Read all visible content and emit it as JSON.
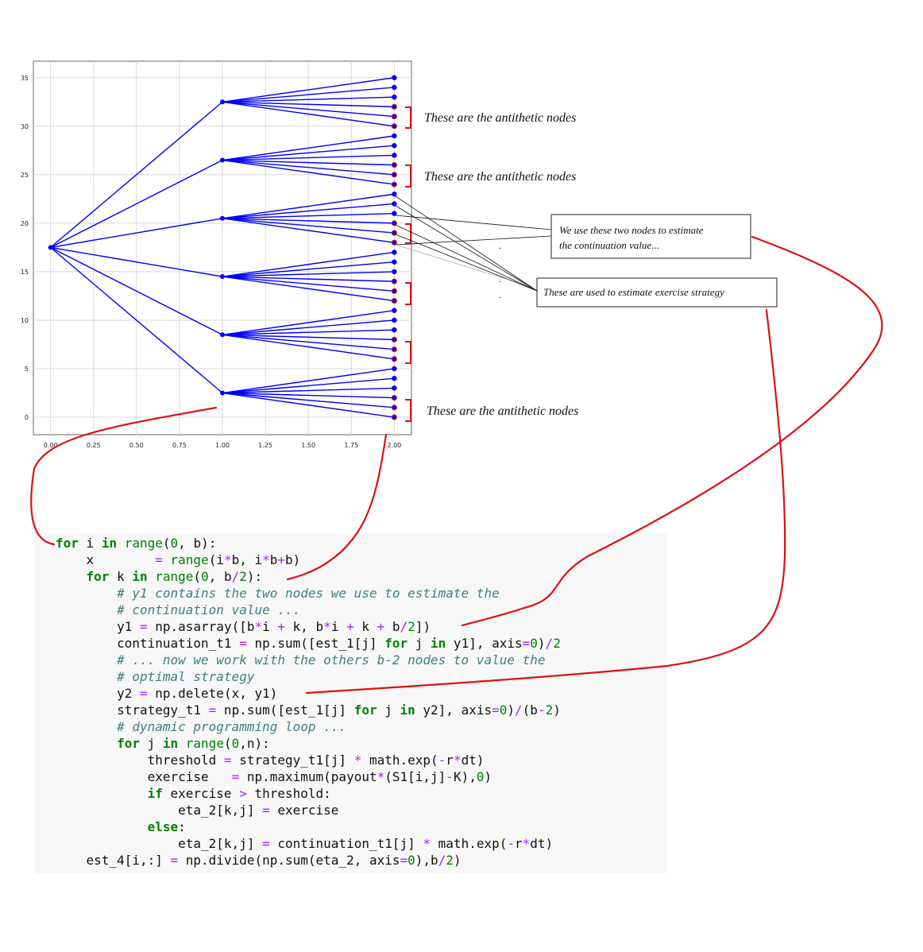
{
  "chart_data": {
    "type": "tree",
    "x_ticks": [
      "0.00",
      "0.25",
      "0.50",
      "0.75",
      "1.00",
      "1.25",
      "1.50",
      "1.75",
      "2.00"
    ],
    "y_ticks": [
      "0",
      "5",
      "10",
      "15",
      "20",
      "25",
      "30",
      "35"
    ],
    "xlim": [
      -0.1,
      2.1
    ],
    "ylim": [
      -1.8,
      36.7
    ],
    "grid": true,
    "color": "#0000ff",
    "antithetic_color": "#cc2222",
    "root": {
      "x": 0.0,
      "y": 17.5
    },
    "level1": [
      32.5,
      26.5,
      20.5,
      14.5,
      8.5,
      2.5
    ],
    "leaves": [
      [
        35,
        34,
        33,
        32,
        31,
        30
      ],
      [
        29,
        28,
        27,
        26,
        25,
        24
      ],
      [
        23,
        22,
        21,
        20,
        19,
        18
      ],
      [
        17,
        16,
        15,
        14,
        13,
        12
      ],
      [
        11,
        10,
        9,
        8,
        7,
        6
      ],
      [
        5,
        4,
        3,
        2,
        1,
        0
      ]
    ],
    "antithetic_per_group": 3
  },
  "annotations": {
    "antithetic_1": "These are the antithetic nodes",
    "antithetic_2": "These are the antithetic nodes",
    "antithetic_3": "These are the antithetic nodes",
    "box_continuation_line1": "We use these two nodes to estimate",
    "box_continuation_line2": "the continuation value...",
    "box_exercise": "These are used to estimate exercise strategy",
    "dots": "."
  },
  "code": {
    "lines": [
      [
        [
          "kw",
          "for"
        ],
        [
          "t",
          " i "
        ],
        [
          "kw",
          "in"
        ],
        [
          "t",
          " "
        ],
        [
          "bi",
          "range"
        ],
        [
          "t",
          "("
        ],
        [
          "num",
          "0"
        ],
        [
          "t",
          ", b):"
        ]
      ],
      [
        [
          "t",
          "    x        "
        ],
        [
          "op",
          "="
        ],
        [
          "t",
          " "
        ],
        [
          "bi",
          "range"
        ],
        [
          "t",
          "(i"
        ],
        [
          "op",
          "*"
        ],
        [
          "t",
          "b, i"
        ],
        [
          "op",
          "*"
        ],
        [
          "t",
          "b"
        ],
        [
          "op",
          "+"
        ],
        [
          "t",
          "b)"
        ]
      ],
      [
        [
          "t",
          "    "
        ],
        [
          "kw",
          "for"
        ],
        [
          "t",
          " k "
        ],
        [
          "kw",
          "in"
        ],
        [
          "t",
          " "
        ],
        [
          "bi",
          "range"
        ],
        [
          "t",
          "("
        ],
        [
          "num",
          "0"
        ],
        [
          "t",
          ", b"
        ],
        [
          "op",
          "/"
        ],
        [
          "num",
          "2"
        ],
        [
          "t",
          "):"
        ]
      ],
      [
        [
          "t",
          "        "
        ],
        [
          "cm",
          "# y1 contains the two nodes we use to estimate the"
        ]
      ],
      [
        [
          "t",
          "        "
        ],
        [
          "cm",
          "# continuation value ..."
        ]
      ],
      [
        [
          "t",
          "        y1 "
        ],
        [
          "op",
          "="
        ],
        [
          "t",
          " np.asarray([b"
        ],
        [
          "op",
          "*"
        ],
        [
          "t",
          "i "
        ],
        [
          "op",
          "+"
        ],
        [
          "t",
          " k, b"
        ],
        [
          "op",
          "*"
        ],
        [
          "t",
          "i "
        ],
        [
          "op",
          "+"
        ],
        [
          "t",
          " k "
        ],
        [
          "op",
          "+"
        ],
        [
          "t",
          " b"
        ],
        [
          "op",
          "/"
        ],
        [
          "num",
          "2"
        ],
        [
          "t",
          "])"
        ]
      ],
      [
        [
          "t",
          "        continuation_t1 "
        ],
        [
          "op",
          "="
        ],
        [
          "t",
          " np.sum([est_1[j] "
        ],
        [
          "kw",
          "for"
        ],
        [
          "t",
          " j "
        ],
        [
          "kw",
          "in"
        ],
        [
          "t",
          " y1], axis"
        ],
        [
          "op",
          "="
        ],
        [
          "num",
          "0"
        ],
        [
          "t",
          ")"
        ],
        [
          "op",
          "/"
        ],
        [
          "num",
          "2"
        ]
      ],
      [
        [
          "t",
          "        "
        ],
        [
          "cm",
          "# ... now we work with the others b-2 nodes to value the"
        ]
      ],
      [
        [
          "t",
          "        "
        ],
        [
          "cm",
          "# optimal strategy"
        ]
      ],
      [
        [
          "t",
          "        y2 "
        ],
        [
          "op",
          "="
        ],
        [
          "t",
          " np.delete(x, y1)"
        ]
      ],
      [
        [
          "t",
          "        strategy_t1 "
        ],
        [
          "op",
          "="
        ],
        [
          "t",
          " np.sum([est_1[j] "
        ],
        [
          "kw",
          "for"
        ],
        [
          "t",
          " j "
        ],
        [
          "kw",
          "in"
        ],
        [
          "t",
          " y2], axis"
        ],
        [
          "op",
          "="
        ],
        [
          "num",
          "0"
        ],
        [
          "t",
          ")"
        ],
        [
          "op",
          "/"
        ],
        [
          "t",
          "(b"
        ],
        [
          "op",
          "-"
        ],
        [
          "num",
          "2"
        ],
        [
          "t",
          ")"
        ]
      ],
      [
        [
          "t",
          "        "
        ],
        [
          "cm",
          "# dynamic programming loop ..."
        ]
      ],
      [
        [
          "t",
          "        "
        ],
        [
          "kw",
          "for"
        ],
        [
          "t",
          " j "
        ],
        [
          "kw",
          "in"
        ],
        [
          "t",
          " "
        ],
        [
          "bi",
          "range"
        ],
        [
          "t",
          "("
        ],
        [
          "num",
          "0"
        ],
        [
          "t",
          ",n):"
        ]
      ],
      [
        [
          "t",
          "            threshold "
        ],
        [
          "op",
          "="
        ],
        [
          "t",
          " strategy_t1[j] "
        ],
        [
          "op",
          "*"
        ],
        [
          "t",
          " math.exp("
        ],
        [
          "op",
          "-"
        ],
        [
          "t",
          "r"
        ],
        [
          "op",
          "*"
        ],
        [
          "t",
          "dt)"
        ]
      ],
      [
        [
          "t",
          "            exercise   "
        ],
        [
          "op",
          "="
        ],
        [
          "t",
          " np.maximum(payout"
        ],
        [
          "op",
          "*"
        ],
        [
          "t",
          "(S1[i,j]"
        ],
        [
          "op",
          "-"
        ],
        [
          "t",
          "K),"
        ],
        [
          "num",
          "0"
        ],
        [
          "t",
          ")"
        ]
      ],
      [
        [
          "t",
          "            "
        ],
        [
          "kw",
          "if"
        ],
        [
          "t",
          " exercise "
        ],
        [
          "op",
          ">"
        ],
        [
          "t",
          " threshold:"
        ]
      ],
      [
        [
          "t",
          "                eta_2[k,j] "
        ],
        [
          "op",
          "="
        ],
        [
          "t",
          " exercise"
        ]
      ],
      [
        [
          "t",
          "            "
        ],
        [
          "kw",
          "else"
        ],
        [
          "t",
          ":"
        ]
      ],
      [
        [
          "t",
          "                eta_2[k,j] "
        ],
        [
          "op",
          "="
        ],
        [
          "t",
          " continuation_t1[j] "
        ],
        [
          "op",
          "*"
        ],
        [
          "t",
          " math.exp("
        ],
        [
          "op",
          "-"
        ],
        [
          "t",
          "r"
        ],
        [
          "op",
          "*"
        ],
        [
          "t",
          "dt)"
        ]
      ],
      [
        [
          "t",
          "    est_4[i,:] "
        ],
        [
          "op",
          "="
        ],
        [
          "t",
          " np.divide(np.sum(eta_2, axis"
        ],
        [
          "op",
          "="
        ],
        [
          "num",
          "0"
        ],
        [
          "t",
          "),b"
        ],
        [
          "op",
          "/"
        ],
        [
          "num",
          "2"
        ],
        [
          "t",
          ")"
        ]
      ]
    ]
  }
}
